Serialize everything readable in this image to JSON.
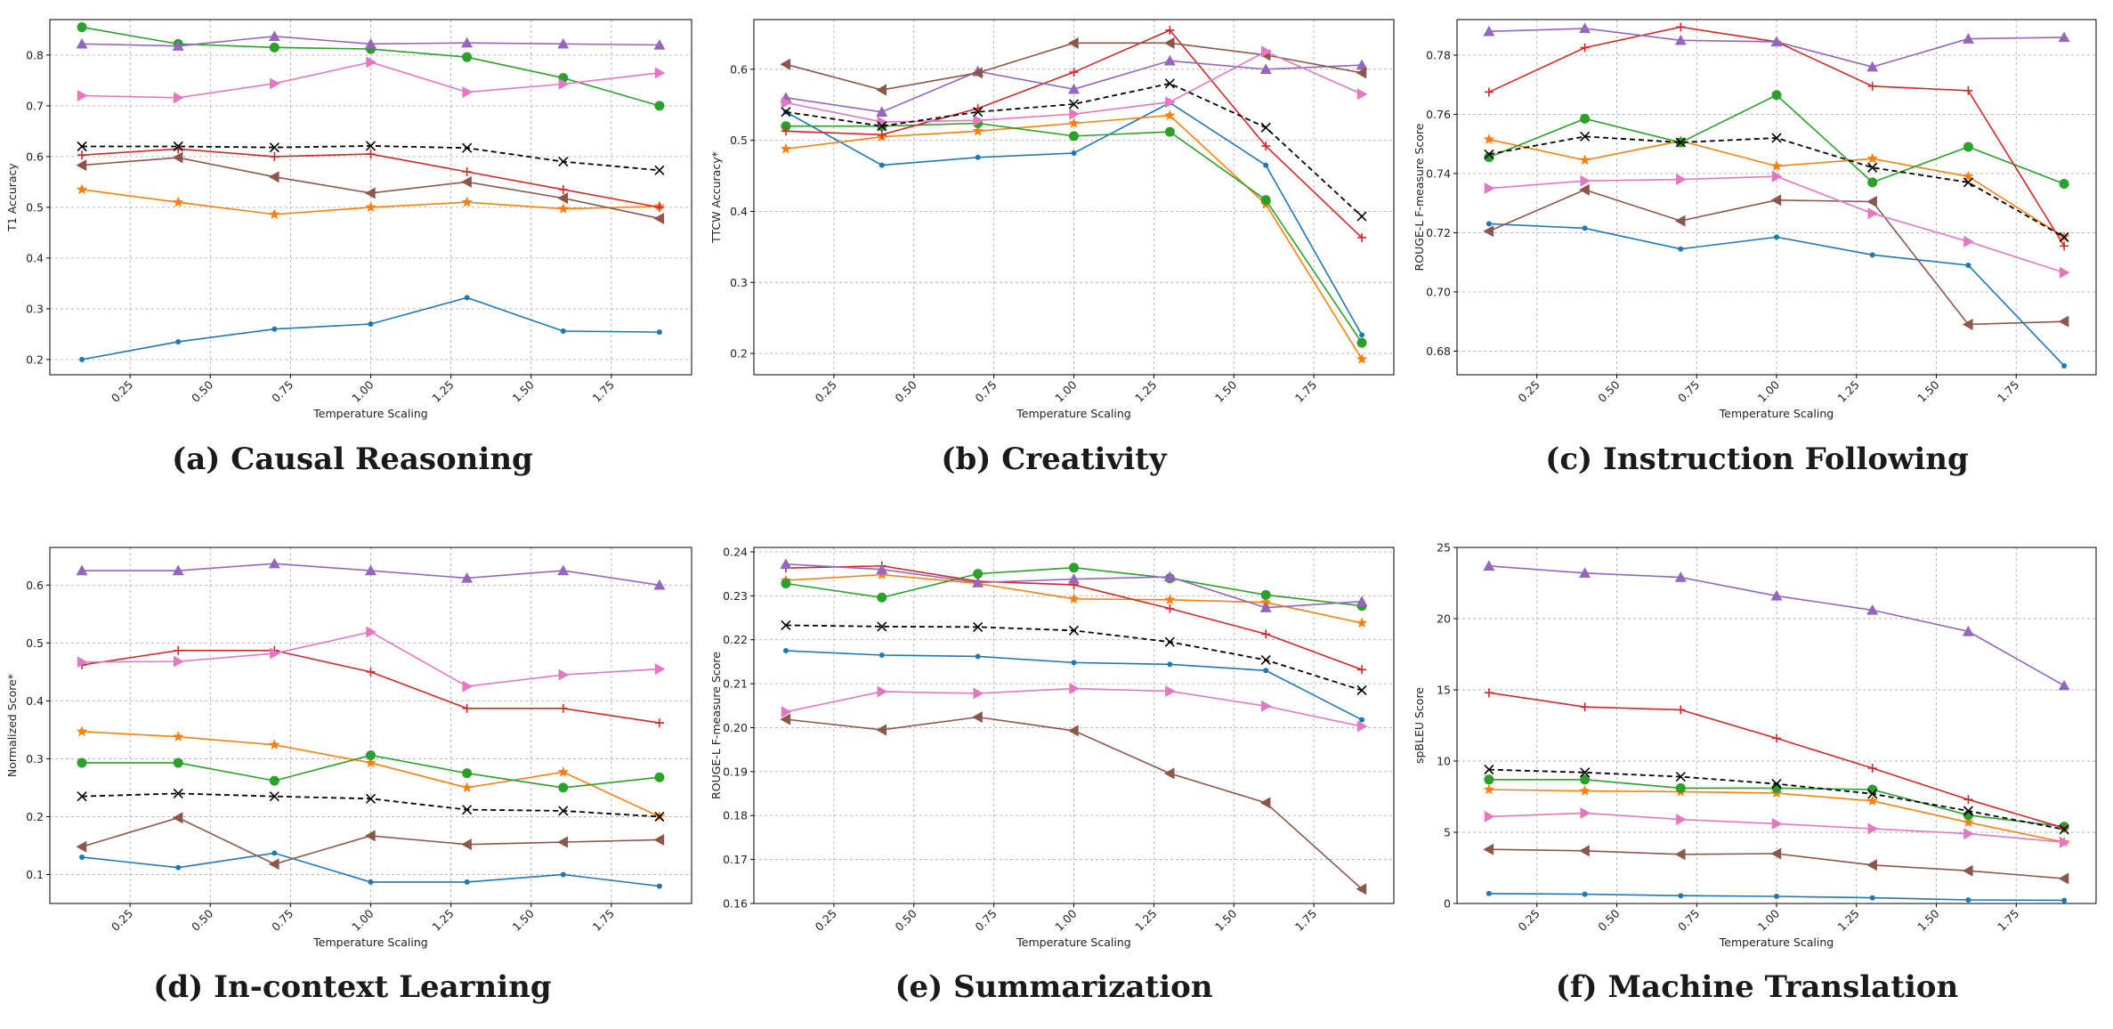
{
  "style": {
    "series_colors": [
      "#1f77b4",
      "#ff7f0e",
      "#2ca02c",
      "#d62728",
      "#9467bd",
      "#8c564b",
      "#e377c2",
      "#000000"
    ],
    "series_markers": [
      "point",
      "star",
      "circle",
      "plus",
      "triangle-up",
      "triangle-left",
      "triangle-right",
      "x"
    ],
    "dashed_series_index": 7
  },
  "chart_data": [
    {
      "type": "line",
      "caption": "(a) Causal Reasoning",
      "xlabel": "Temperature Scaling",
      "ylabel": "T1 Accuracy",
      "xlim": [
        0.0,
        2.0
      ],
      "ylim": [
        0.17,
        0.87
      ],
      "xticks": [
        0.25,
        0.5,
        0.75,
        1.0,
        1.25,
        1.5,
        1.75
      ],
      "xtick_labels": [
        "0.25",
        "0.50",
        "0.75",
        "1.00",
        "1.25",
        "1.50",
        "1.75"
      ],
      "yticks": [
        0.2,
        0.3,
        0.4,
        0.5,
        0.6,
        0.7,
        0.8
      ],
      "ytick_labels": [
        "0.2",
        "0.3",
        "0.4",
        "0.5",
        "0.6",
        "0.7",
        "0.8"
      ],
      "grid": true,
      "x": [
        0.1,
        0.4,
        0.7,
        1.0,
        1.3,
        1.6,
        1.9
      ],
      "series": [
        {
          "values": [
            0.2,
            0.235,
            0.26,
            0.27,
            0.322,
            0.256,
            0.254
          ]
        },
        {
          "values": [
            0.535,
            0.51,
            0.486,
            0.5,
            0.51,
            0.497,
            0.502
          ]
        },
        {
          "values": [
            0.855,
            0.822,
            0.815,
            0.812,
            0.796,
            0.755,
            0.7
          ]
        },
        {
          "values": [
            0.603,
            0.615,
            0.6,
            0.605,
            0.57,
            0.535,
            0.5
          ]
        },
        {
          "values": [
            0.822,
            0.818,
            0.837,
            0.822,
            0.824,
            0.822,
            0.82
          ]
        },
        {
          "values": [
            0.583,
            0.598,
            0.56,
            0.528,
            0.55,
            0.518,
            0.478
          ]
        },
        {
          "values": [
            0.72,
            0.716,
            0.744,
            0.786,
            0.727,
            0.743,
            0.765
          ]
        },
        {
          "values": [
            0.62,
            0.62,
            0.618,
            0.621,
            0.617,
            0.59,
            0.573
          ]
        }
      ]
    },
    {
      "type": "line",
      "caption": "(b) Creativity",
      "xlabel": "Temperature Scaling",
      "ylabel": "TTCW Accuracy*",
      "xlim": [
        0.0,
        2.0
      ],
      "ylim": [
        0.17,
        0.67
      ],
      "xticks": [
        0.25,
        0.5,
        0.75,
        1.0,
        1.25,
        1.5,
        1.75
      ],
      "xtick_labels": [
        "0.25",
        "0.50",
        "0.75",
        "1.00",
        "1.25",
        "1.50",
        "1.75"
      ],
      "yticks": [
        0.2,
        0.3,
        0.4,
        0.5,
        0.6
      ],
      "ytick_labels": [
        "0.2",
        "0.3",
        "0.4",
        "0.5",
        "0.6"
      ],
      "grid": true,
      "x": [
        0.1,
        0.4,
        0.7,
        1.0,
        1.3,
        1.6,
        1.9
      ],
      "series": [
        {
          "values": [
            0.54,
            0.465,
            0.476,
            0.482,
            0.553,
            0.465,
            0.226
          ]
        },
        {
          "values": [
            0.488,
            0.505,
            0.513,
            0.524,
            0.535,
            0.41,
            0.192
          ]
        },
        {
          "values": [
            0.52,
            0.52,
            0.524,
            0.506,
            0.512,
            0.416,
            0.215
          ]
        },
        {
          "values": [
            0.513,
            0.508,
            0.545,
            0.596,
            0.655,
            0.492,
            0.363
          ]
        },
        {
          "values": [
            0.56,
            0.54,
            0.597,
            0.572,
            0.612,
            0.6,
            0.606
          ]
        },
        {
          "values": [
            0.607,
            0.571,
            0.595,
            0.637,
            0.637,
            0.62,
            0.595
          ]
        },
        {
          "values": [
            0.553,
            0.526,
            0.528,
            0.537,
            0.554,
            0.625,
            0.565
          ]
        },
        {
          "values": [
            0.54,
            0.52,
            0.54,
            0.551,
            0.58,
            0.518,
            0.393
          ]
        }
      ]
    },
    {
      "type": "line",
      "caption": "(c) Instruction Following",
      "xlabel": "Temperature Scaling",
      "ylabel": "ROUGE-L F-measure Score",
      "xlim": [
        0.0,
        2.0
      ],
      "ylim": [
        0.672,
        0.792
      ],
      "xticks": [
        0.25,
        0.5,
        0.75,
        1.0,
        1.25,
        1.5,
        1.75
      ],
      "xtick_labels": [
        "0.25",
        "0.50",
        "0.75",
        "1.00",
        "1.25",
        "1.50",
        "1.75"
      ],
      "yticks": [
        0.68,
        0.7,
        0.72,
        0.74,
        0.76,
        0.78
      ],
      "ytick_labels": [
        "0.68",
        "0.70",
        "0.72",
        "0.74",
        "0.76",
        "0.78"
      ],
      "grid": true,
      "x": [
        0.1,
        0.4,
        0.7,
        1.0,
        1.3,
        1.6,
        1.9
      ],
      "series": [
        {
          "values": [
            0.723,
            0.7215,
            0.7145,
            0.7185,
            0.7125,
            0.709,
            0.675
          ]
        },
        {
          "values": [
            0.7515,
            0.7445,
            0.751,
            0.7425,
            0.745,
            0.739,
            0.7185
          ]
        },
        {
          "values": [
            0.7455,
            0.7585,
            0.7505,
            0.7665,
            0.737,
            0.749,
            0.7365
          ]
        },
        {
          "values": [
            0.7675,
            0.7825,
            0.7895,
            0.7845,
            0.7695,
            0.768,
            0.7155
          ]
        },
        {
          "values": [
            0.788,
            0.789,
            0.785,
            0.7845,
            0.776,
            0.7855,
            0.786
          ]
        },
        {
          "values": [
            0.7205,
            0.7345,
            0.724,
            0.731,
            0.7305,
            0.689,
            0.69
          ]
        },
        {
          "values": [
            0.735,
            0.7375,
            0.738,
            0.739,
            0.7265,
            0.717,
            0.7065
          ]
        },
        {
          "values": [
            0.7465,
            0.7525,
            0.7505,
            0.752,
            0.742,
            0.737,
            0.7185
          ]
        }
      ]
    },
    {
      "type": "line",
      "caption": "(d) In-context Learning",
      "xlabel": "Temperature Scaling",
      "ylabel": "Normalized Score*",
      "xlim": [
        0.0,
        2.0
      ],
      "ylim": [
        0.05,
        0.665
      ],
      "xticks": [
        0.25,
        0.5,
        0.75,
        1.0,
        1.25,
        1.5,
        1.75
      ],
      "xtick_labels": [
        "0.25",
        "0.50",
        "0.75",
        "1.00",
        "1.25",
        "1.50",
        "1.75"
      ],
      "yticks": [
        0.1,
        0.2,
        0.3,
        0.4,
        0.5,
        0.6
      ],
      "ytick_labels": [
        "0.1",
        "0.2",
        "0.3",
        "0.4",
        "0.5",
        "0.6"
      ],
      "grid": true,
      "x": [
        0.1,
        0.4,
        0.7,
        1.0,
        1.3,
        1.6,
        1.9
      ],
      "series": [
        {
          "values": [
            0.13,
            0.112,
            0.137,
            0.087,
            0.087,
            0.1,
            0.08
          ]
        },
        {
          "values": [
            0.347,
            0.338,
            0.324,
            0.293,
            0.25,
            0.277,
            0.2
          ]
        },
        {
          "values": [
            0.293,
            0.293,
            0.262,
            0.306,
            0.275,
            0.25,
            0.268
          ]
        },
        {
          "values": [
            0.462,
            0.487,
            0.487,
            0.45,
            0.387,
            0.387,
            0.362
          ]
        },
        {
          "values": [
            0.625,
            0.625,
            0.637,
            0.625,
            0.612,
            0.625,
            0.6
          ]
        },
        {
          "values": [
            0.148,
            0.198,
            0.118,
            0.167,
            0.152,
            0.156,
            0.16
          ]
        },
        {
          "values": [
            0.467,
            0.468,
            0.482,
            0.519,
            0.425,
            0.445,
            0.455
          ]
        },
        {
          "values": [
            0.235,
            0.24,
            0.235,
            0.231,
            0.212,
            0.21,
            0.2
          ]
        }
      ]
    },
    {
      "type": "line",
      "caption": "(e) Summarization",
      "xlabel": "Temperature Scaling",
      "ylabel": "ROUGE-L F-measure Score",
      "xlim": [
        0.0,
        2.0
      ],
      "ylim": [
        0.16,
        0.241
      ],
      "xticks": [
        0.25,
        0.5,
        0.75,
        1.0,
        1.25,
        1.5,
        1.75
      ],
      "xtick_labels": [
        "0.25",
        "0.50",
        "0.75",
        "1.00",
        "1.25",
        "1.50",
        "1.75"
      ],
      "yticks": [
        0.16,
        0.17,
        0.18,
        0.19,
        0.2,
        0.21,
        0.22,
        0.23,
        0.24
      ],
      "ytick_labels": [
        "0.16",
        "0.17",
        "0.18",
        "0.19",
        "0.20",
        "0.21",
        "0.22",
        "0.23",
        "0.24"
      ],
      "grid": true,
      "x": [
        0.1,
        0.4,
        0.7,
        1.0,
        1.3,
        1.6,
        1.9
      ],
      "series": [
        {
          "values": [
            0.2175,
            0.2165,
            0.2162,
            0.2148,
            0.2144,
            0.213,
            0.2018
          ]
        },
        {
          "values": [
            0.2335,
            0.2348,
            0.2328,
            0.2293,
            0.2291,
            0.2285,
            0.2238
          ]
        },
        {
          "values": [
            0.2328,
            0.2296,
            0.235,
            0.2364,
            0.234,
            0.2302,
            0.2277
          ]
        },
        {
          "values": [
            0.2363,
            0.2368,
            0.2333,
            0.2325,
            0.2271,
            0.2213,
            0.2132
          ]
        },
        {
          "values": [
            0.2372,
            0.236,
            0.233,
            0.2338,
            0.2343,
            0.2273,
            0.2287
          ]
        },
        {
          "values": [
            0.2019,
            0.1995,
            0.2024,
            0.1993,
            0.1896,
            0.1829,
            0.1633
          ]
        },
        {
          "values": [
            0.2036,
            0.2082,
            0.2078,
            0.2089,
            0.2083,
            0.2049,
            0.2003
          ]
        },
        {
          "values": [
            0.2233,
            0.223,
            0.2229,
            0.2221,
            0.2195,
            0.2154,
            0.2085
          ]
        }
      ]
    },
    {
      "type": "line",
      "caption": "(f) Machine Translation",
      "xlabel": "Temperature Scaling",
      "ylabel": "spBLEU Score",
      "xlim": [
        0.0,
        2.0
      ],
      "ylim": [
        0.0,
        25.0
      ],
      "xticks": [
        0.25,
        0.5,
        0.75,
        1.0,
        1.25,
        1.5,
        1.75
      ],
      "xtick_labels": [
        "0.25",
        "0.50",
        "0.75",
        "1.00",
        "1.25",
        "1.50",
        "1.75"
      ],
      "yticks": [
        0,
        5,
        10,
        15,
        20,
        25
      ],
      "ytick_labels": [
        "0",
        "5",
        "10",
        "15",
        "20",
        "25"
      ],
      "grid": true,
      "x": [
        0.1,
        0.4,
        0.7,
        1.0,
        1.3,
        1.6,
        1.9
      ],
      "series": [
        {
          "values": [
            0.7,
            0.65,
            0.55,
            0.5,
            0.4,
            0.25,
            0.22
          ]
        },
        {
          "values": [
            8.0,
            7.9,
            7.85,
            7.75,
            7.2,
            5.7,
            4.3
          ]
        },
        {
          "values": [
            8.7,
            8.7,
            8.1,
            8.1,
            8.0,
            6.2,
            5.4
          ]
        },
        {
          "values": [
            14.8,
            13.8,
            13.6,
            11.6,
            9.5,
            7.3,
            5.3
          ]
        },
        {
          "values": [
            23.7,
            23.2,
            22.9,
            21.6,
            20.6,
            19.1,
            15.3
          ]
        },
        {
          "values": [
            3.8,
            3.7,
            3.45,
            3.5,
            2.7,
            2.3,
            1.75
          ]
        },
        {
          "values": [
            6.1,
            6.35,
            5.9,
            5.6,
            5.25,
            4.9,
            4.3
          ]
        },
        {
          "values": [
            9.4,
            9.2,
            8.9,
            8.4,
            7.7,
            6.5,
            5.2
          ]
        }
      ]
    }
  ]
}
